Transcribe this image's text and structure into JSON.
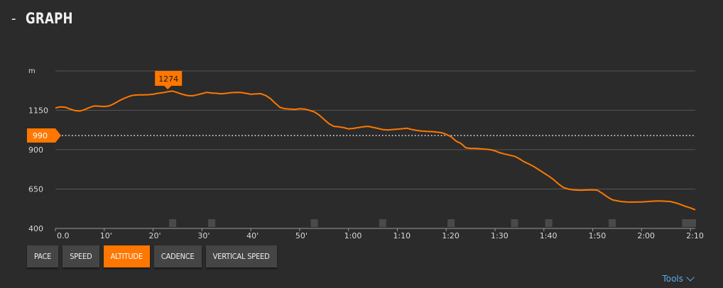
{
  "header": {
    "toggle_symbol": "-",
    "title": "GRAPH"
  },
  "buttons": [
    {
      "label": "PACE",
      "active": false
    },
    {
      "label": "SPEED",
      "active": false
    },
    {
      "label": "ALTITUDE",
      "active": true
    },
    {
      "label": "CADENCE",
      "active": false
    },
    {
      "label": "VERTICAL SPEED",
      "active": false
    }
  ],
  "tools": {
    "label": "Tools",
    "icon": "chevron-down-icon"
  },
  "colors": {
    "line": "#ff7700",
    "accent": "#ff7700",
    "grid": "#555555",
    "text": "#d9d9d9",
    "background": "#2b2b2b"
  },
  "chart_data": {
    "type": "line",
    "ylabel": "m",
    "ytick_labels": [
      "400",
      "650",
      "900",
      "1150"
    ],
    "ytick_values": [
      400,
      650,
      900,
      1150
    ],
    "ylim": [
      400,
      1400
    ],
    "xlim": [
      0,
      131
    ],
    "xtick_labels": [
      "0.0",
      "10'",
      "20'",
      "30'",
      "40'",
      "50'",
      "1:00",
      "1:10",
      "1:20",
      "1:30",
      "1:40",
      "1:50",
      "2:00",
      "2:10"
    ],
    "xtick_values": [
      0,
      10,
      20,
      30,
      40,
      50,
      60,
      70,
      80,
      90,
      100,
      110,
      120,
      130
    ],
    "grid": true,
    "reference_line": {
      "value": 990,
      "label": "990"
    },
    "max_marker": {
      "x": 23,
      "value": 1274,
      "label": "1274"
    },
    "lap_markers_x": [
      24,
      32,
      53,
      67,
      81,
      94,
      101,
      114,
      129,
      131
    ],
    "series": [
      {
        "x": [
          0,
          1,
          2,
          3,
          4,
          5,
          6,
          7,
          8,
          9,
          10,
          11,
          12,
          13,
          14,
          15,
          16,
          17,
          18,
          19,
          20,
          21,
          22,
          23,
          24,
          25,
          26,
          27,
          28,
          29,
          30,
          31,
          32,
          33,
          34,
          35,
          36,
          37,
          38,
          39,
          40,
          41,
          42,
          43,
          44,
          45,
          46,
          47,
          48,
          49,
          50,
          51,
          52,
          53,
          54,
          55,
          56,
          57,
          58,
          59,
          60,
          61,
          62,
          63,
          64,
          65,
          66,
          67,
          68,
          69,
          70,
          71,
          72,
          73,
          74,
          75,
          76,
          77,
          78,
          79,
          80,
          81,
          82,
          83,
          84,
          85,
          86,
          87,
          88,
          89,
          90,
          91,
          92,
          93,
          94,
          95,
          96,
          97,
          98,
          99,
          100,
          101,
          102,
          103,
          104,
          105,
          106,
          107,
          108,
          109,
          110,
          111,
          112,
          113,
          114,
          115,
          116,
          117,
          118,
          119,
          120,
          121,
          122,
          123,
          124,
          125,
          126,
          127,
          128,
          129,
          130,
          131
        ],
        "values": [
          1165,
          1172,
          1170,
          1158,
          1148,
          1145,
          1155,
          1168,
          1178,
          1176,
          1174,
          1178,
          1192,
          1210,
          1225,
          1238,
          1246,
          1248,
          1248,
          1249,
          1252,
          1258,
          1262,
          1268,
          1272,
          1262,
          1252,
          1244,
          1242,
          1248,
          1256,
          1264,
          1260,
          1258,
          1255,
          1258,
          1262,
          1264,
          1263,
          1258,
          1252,
          1254,
          1256,
          1245,
          1225,
          1195,
          1168,
          1160,
          1158,
          1156,
          1160,
          1158,
          1150,
          1140,
          1120,
          1092,
          1065,
          1048,
          1045,
          1040,
          1032,
          1035,
          1040,
          1045,
          1048,
          1042,
          1035,
          1028,
          1025,
          1028,
          1030,
          1033,
          1036,
          1028,
          1022,
          1018,
          1016,
          1015,
          1012,
          1008,
          998,
          982,
          955,
          940,
          912,
          908,
          908,
          906,
          903,
          900,
          893,
          880,
          872,
          865,
          858,
          842,
          822,
          808,
          792,
          772,
          752,
          732,
          710,
          682,
          660,
          650,
          645,
          643,
          643,
          644,
          645,
          642,
          622,
          600,
          582,
          575,
          570,
          568,
          567,
          568,
          568,
          570,
          572,
          574,
          574,
          572,
          570,
          562,
          552,
          540,
          530,
          518
        ]
      }
    ]
  }
}
